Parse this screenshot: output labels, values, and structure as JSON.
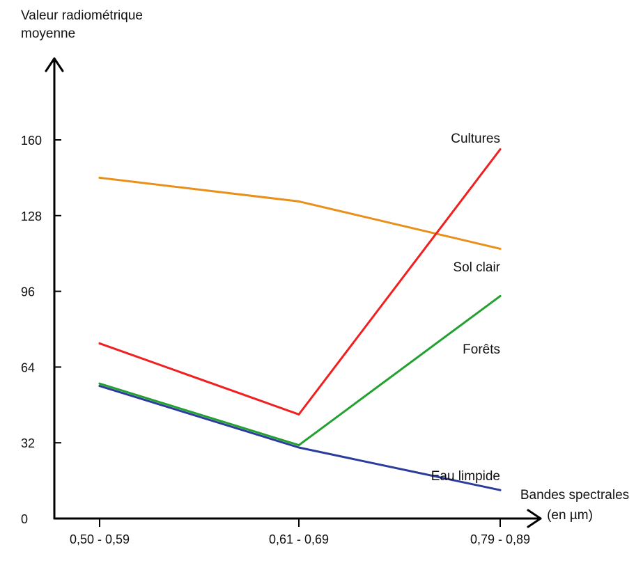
{
  "chart_data": {
    "type": "line",
    "ylabel_lines": [
      "Valeur radiométrique",
      "moyenne"
    ],
    "xlabel_lines": [
      "Bandes spectrales",
      "(en µm)"
    ],
    "categories": [
      "0,50 - 0,59",
      "0,61 - 0,69",
      "0,79 - 0,89"
    ],
    "yticks": [
      "0",
      "32",
      "64",
      "96",
      "128",
      "160"
    ],
    "ylim": [
      0,
      160
    ],
    "grid": false,
    "legend": "none",
    "series": [
      {
        "name": "Sol clair",
        "color": "#E8901A",
        "values": [
          144,
          134,
          114
        ]
      },
      {
        "name": "Cultures",
        "color": "#F02020",
        "values": [
          74,
          44,
          156
        ]
      },
      {
        "name": "Forêts",
        "color": "#22A030",
        "values": [
          57,
          31,
          94
        ]
      },
      {
        "name": "Eau limpide",
        "color": "#2C3C9C",
        "values": [
          56,
          30,
          12
        ]
      }
    ]
  }
}
